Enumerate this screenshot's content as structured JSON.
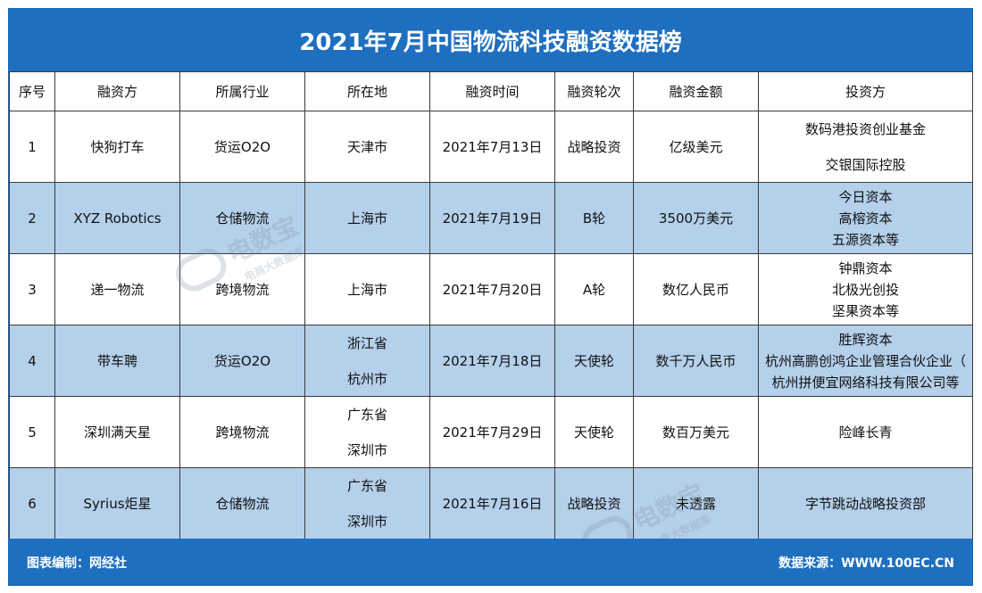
{
  "title": "2021年7月中国物流科技融资数据榜",
  "headers": [
    "序号",
    "融资方",
    "所属行业",
    "所在地",
    "融资时间",
    "融资轮次",
    "融资金额",
    "投资方"
  ],
  "rows": [
    {
      "no": "1",
      "company": "快狗打车",
      "industry": "货运O2O",
      "location": [
        "天津市"
      ],
      "date": "2021年7月13日",
      "round": "战略投资",
      "amount": "亿级美元",
      "investors": [
        "数码港投资创业基金",
        "交银国际控股"
      ]
    },
    {
      "no": "2",
      "company": "XYZ Robotics",
      "industry": "仓储物流",
      "location": [
        "上海市"
      ],
      "date": "2021年7月19日",
      "round": "B轮",
      "amount": "3500万美元",
      "investors": [
        "今日资本",
        "高榕资本",
        "五源资本等"
      ]
    },
    {
      "no": "3",
      "company": "递一物流",
      "industry": "跨境物流",
      "location": [
        "上海市"
      ],
      "date": "2021年7月20日",
      "round": "A轮",
      "amount": "数亿人民币",
      "investors": [
        "钟鼎资本",
        "北极光创投",
        "坚果资本等"
      ]
    },
    {
      "no": "4",
      "company": "带车聘",
      "industry": "货运O2O",
      "location": [
        "浙江省",
        "杭州市"
      ],
      "date": "2021年7月18日",
      "round": "天使轮",
      "amount": "数千万人民币",
      "investors": [
        "胜辉资本",
        "杭州高鹏创鸿企业管理合伙企业（",
        "杭州拼便宜网络科技有限公司等"
      ]
    },
    {
      "no": "5",
      "company": "深圳满天星",
      "industry": "跨境物流",
      "location": [
        "广东省",
        "深圳市"
      ],
      "date": "2021年7月29日",
      "round": "天使轮",
      "amount": "数百万美元",
      "investors": [
        "险峰长青"
      ]
    },
    {
      "no": "6",
      "company": "Syrius炬星",
      "industry": "仓储物流",
      "location": [
        "广东省",
        "深圳市"
      ],
      "date": "2021年7月16日",
      "round": "战略投资",
      "amount": "未透露",
      "investors": [
        "字节跳动战略投资部"
      ]
    }
  ],
  "footer": {
    "left": "图表编制：网经社",
    "right": "数据来源：WWW.100EC.CN"
  },
  "watermark": {
    "brand": "电数宝",
    "sub": "电商大数据库"
  }
}
